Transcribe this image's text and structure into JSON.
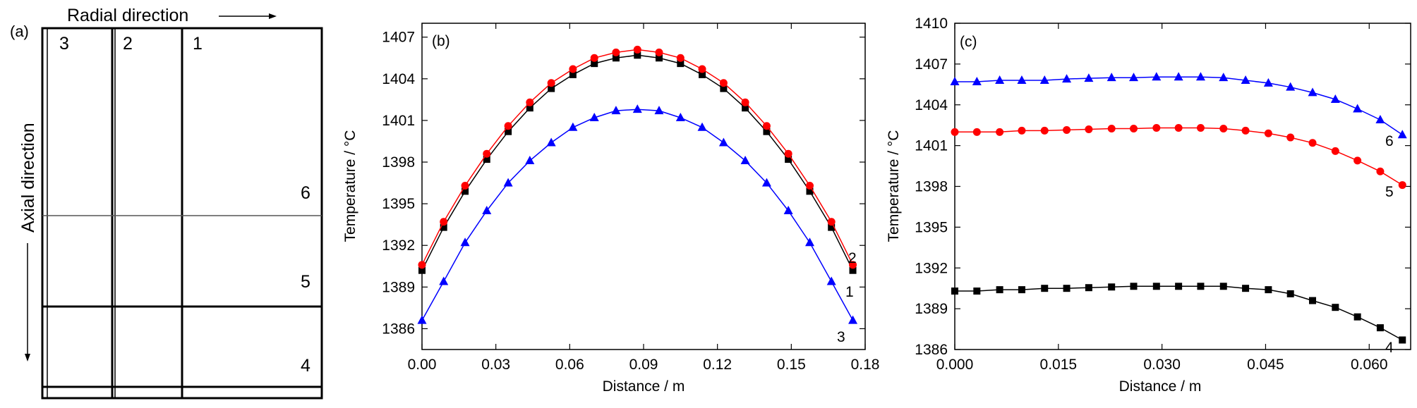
{
  "panel_a": {
    "label": "(a)",
    "radial_label": "Radial direction",
    "axial_label": "Axial direction",
    "column_labels": [
      "3",
      "2",
      "1"
    ],
    "row_labels": [
      "6",
      "5",
      "4"
    ]
  },
  "panel_b": {
    "label": "(b)"
  },
  "panel_c": {
    "label": "(c)"
  },
  "colors": {
    "series_1": "#000000",
    "series_2": "#ff0000",
    "series_3": "#0000ff"
  },
  "chart_data": [
    {
      "type": "line",
      "panel": "(b)",
      "xlabel": "Distance / m",
      "ylabel": "Temperature / °C",
      "xlim": [
        0,
        0.18
      ],
      "ylim": [
        1384.5,
        1408
      ],
      "xticks": [
        "0.00",
        "0.03",
        "0.06",
        "0.09",
        "0.12",
        "0.15",
        "0.18"
      ],
      "yticks": [
        "1386",
        "1389",
        "1392",
        "1395",
        "1398",
        "1401",
        "1404",
        "1407"
      ],
      "x": [
        0,
        0.0088,
        0.0175,
        0.0263,
        0.035,
        0.0438,
        0.0525,
        0.0613,
        0.07,
        0.0788,
        0.0875,
        0.0963,
        0.105,
        0.1138,
        0.1225,
        0.1313,
        0.14,
        0.1488,
        0.1575,
        0.1663,
        0.175
      ],
      "series": [
        {
          "name": "1",
          "marker": "square",
          "color": "#000000",
          "values": [
            1390.2,
            1393.3,
            1395.9,
            1398.2,
            1400.2,
            1401.9,
            1403.3,
            1404.3,
            1405.1,
            1405.5,
            1405.7,
            1405.5,
            1405.1,
            1404.3,
            1403.3,
            1401.9,
            1400.2,
            1398.2,
            1395.9,
            1393.3,
            1390.2
          ]
        },
        {
          "name": "2",
          "marker": "circle",
          "color": "#ff0000",
          "values": [
            1390.6,
            1393.7,
            1396.3,
            1398.6,
            1400.6,
            1402.3,
            1403.7,
            1404.7,
            1405.5,
            1405.9,
            1406.1,
            1405.9,
            1405.5,
            1404.7,
            1403.7,
            1402.3,
            1400.6,
            1398.6,
            1396.3,
            1393.7,
            1390.6
          ]
        },
        {
          "name": "3",
          "marker": "triangle",
          "color": "#0000ff",
          "values": [
            1386.6,
            1389.4,
            1392.2,
            1394.5,
            1396.5,
            1398.1,
            1399.4,
            1400.5,
            1401.2,
            1401.7,
            1401.8,
            1401.7,
            1401.2,
            1400.5,
            1399.4,
            1398.1,
            1396.5,
            1394.5,
            1392.2,
            1389.4,
            1386.6
          ]
        }
      ]
    },
    {
      "type": "line",
      "panel": "(c)",
      "xlabel": "Distance / m",
      "ylabel": "Temperature / °C",
      "xlim": [
        0,
        0.066
      ],
      "ylim": [
        1386,
        1410
      ],
      "xticks": [
        "0.000",
        "0.015",
        "0.030",
        "0.045",
        "0.060"
      ],
      "yticks": [
        "1386",
        "1389",
        "1392",
        "1395",
        "1398",
        "1401",
        "1404",
        "1407",
        "1410"
      ],
      "x": [
        0,
        0.0032,
        0.0065,
        0.0097,
        0.013,
        0.0162,
        0.0194,
        0.0227,
        0.0259,
        0.0292,
        0.0324,
        0.0356,
        0.0389,
        0.0421,
        0.0454,
        0.0486,
        0.0518,
        0.0551,
        0.0583,
        0.0616,
        0.0648
      ],
      "series": [
        {
          "name": "4",
          "marker": "square",
          "color": "#000000",
          "values": [
            1390.3,
            1390.3,
            1390.4,
            1390.4,
            1390.5,
            1390.5,
            1390.55,
            1390.6,
            1390.65,
            1390.65,
            1390.65,
            1390.65,
            1390.65,
            1390.5,
            1390.4,
            1390.1,
            1389.6,
            1389.1,
            1388.4,
            1387.6,
            1386.7
          ]
        },
        {
          "name": "5",
          "marker": "circle",
          "color": "#ff0000",
          "values": [
            1402.0,
            1402.0,
            1402.0,
            1402.1,
            1402.1,
            1402.15,
            1402.2,
            1402.25,
            1402.25,
            1402.3,
            1402.3,
            1402.3,
            1402.25,
            1402.1,
            1401.9,
            1401.6,
            1401.2,
            1400.6,
            1399.9,
            1399.1,
            1398.1
          ]
        },
        {
          "name": "6",
          "marker": "triangle",
          "color": "#0000ff",
          "values": [
            1405.7,
            1405.7,
            1405.8,
            1405.8,
            1405.8,
            1405.9,
            1405.95,
            1406.0,
            1406.0,
            1406.05,
            1406.05,
            1406.05,
            1406.0,
            1405.8,
            1405.6,
            1405.3,
            1404.9,
            1404.4,
            1403.7,
            1402.9,
            1401.8
          ]
        }
      ]
    }
  ]
}
